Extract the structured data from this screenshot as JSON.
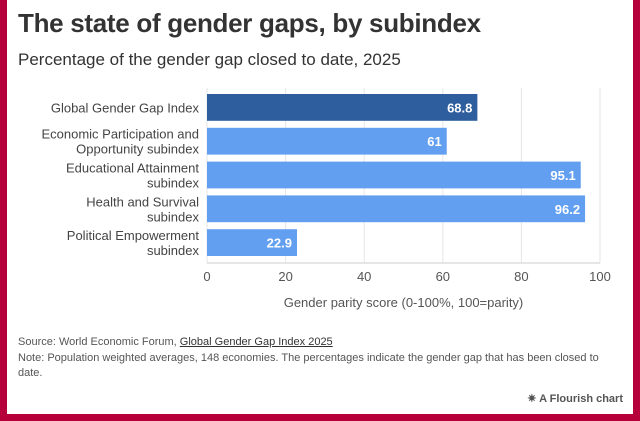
{
  "title": "The state of gender gaps, by subindex",
  "subtitle": "Percentage of the gender gap closed to date, 2025",
  "chart_data": {
    "type": "bar",
    "orientation": "horizontal",
    "categories": [
      [
        "Global Gender Gap Index"
      ],
      [
        "Economic Participation and",
        "Opportunity subindex"
      ],
      [
        "Educational Attainment",
        "subindex"
      ],
      [
        "Health and Survival",
        "subindex"
      ],
      [
        "Political Empowerment",
        "subindex"
      ]
    ],
    "values": [
      68.8,
      61,
      95.1,
      96.2,
      22.9
    ],
    "value_labels": [
      "68.8",
      "61",
      "95.1",
      "96.2",
      "22.9"
    ],
    "colors": [
      "#2e5e9e",
      "#629ff0",
      "#629ff0",
      "#629ff0",
      "#629ff0"
    ],
    "xlabel": "Gender parity score (0-100%, 100=parity)",
    "xlim": [
      0,
      100
    ],
    "xticks": [
      "0",
      "20",
      "40",
      "60",
      "80",
      "100"
    ],
    "grid": true
  },
  "footer": {
    "source_prefix": "Source: World Economic Forum, ",
    "source_link": "Global Gender Gap Index 2025",
    "note": "Note: Population weighted averages, 148 economies. The percentages indicate the gender gap that has been closed to date.",
    "credit": "A Flourish chart"
  }
}
